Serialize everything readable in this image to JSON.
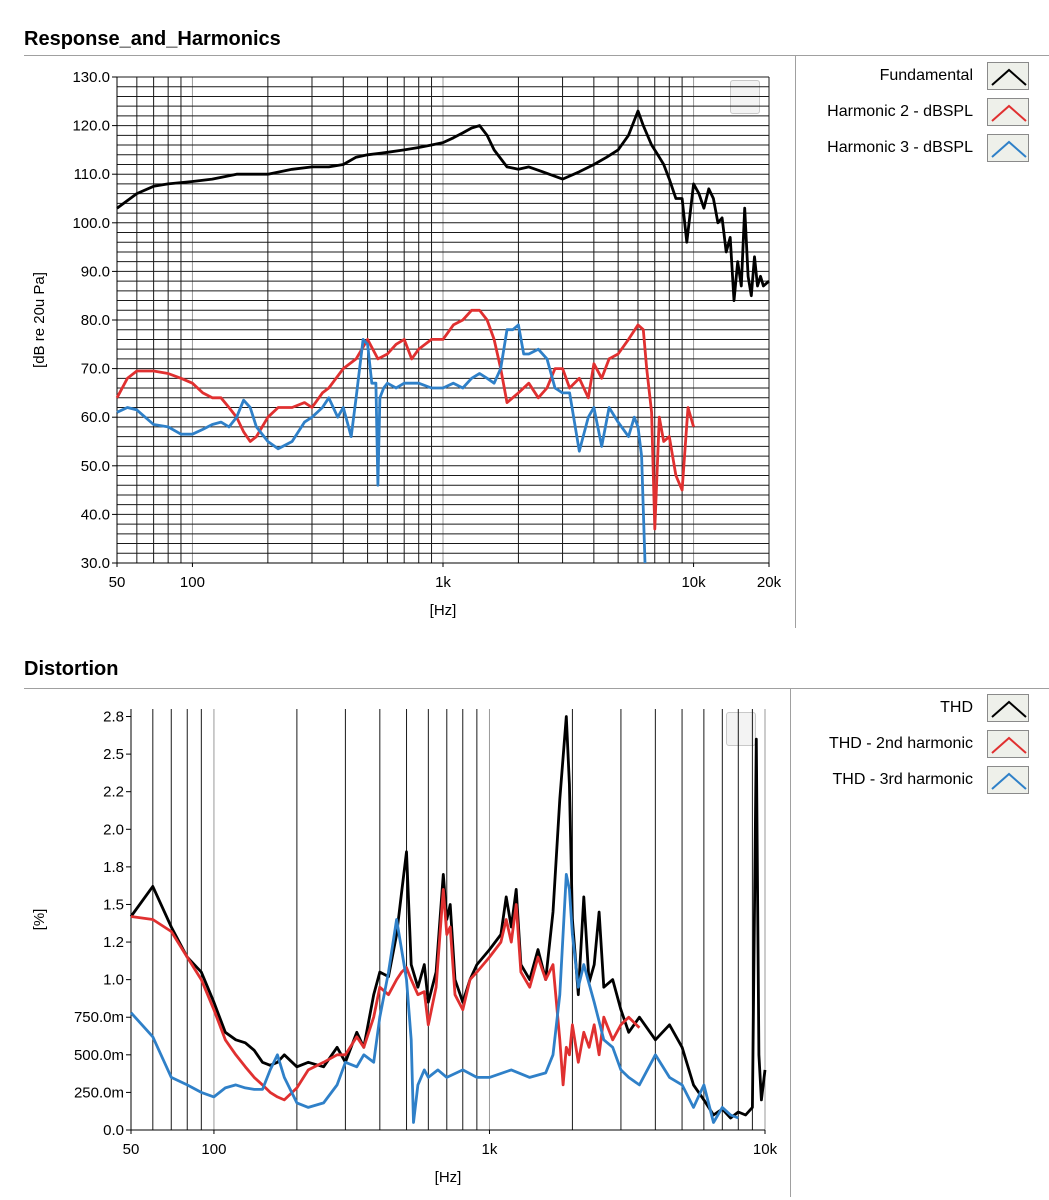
{
  "panels": [
    {
      "title": "Response_and_Harmonics",
      "legend": [
        {
          "label": "Fundamental",
          "color": "#000000"
        },
        {
          "label": "Harmonic 2 - dBSPL",
          "color": "#e03030"
        },
        {
          "label": "Harmonic 3 - dBSPL",
          "color": "#2f80c8"
        }
      ]
    },
    {
      "title": "Distortion",
      "legend": [
        {
          "label": "THD",
          "color": "#000000"
        },
        {
          "label": "THD - 2nd harmonic",
          "color": "#e03030"
        },
        {
          "label": "THD - 3rd harmonic",
          "color": "#2f80c8"
        }
      ]
    }
  ],
  "chart_data": [
    {
      "type": "line",
      "title": "Response_and_Harmonics",
      "xlabel": "[Hz]",
      "ylabel": "[dB re 20u Pa]",
      "xscale": "log",
      "xlim": [
        50,
        20000
      ],
      "ylim": [
        30,
        130
      ],
      "xticks": [
        50,
        100,
        1000,
        10000,
        20000
      ],
      "xtick_labels": [
        "50",
        "100",
        "1k",
        "10k",
        "20k"
      ],
      "yticks": [
        30,
        40,
        50,
        60,
        70,
        80,
        90,
        100,
        110,
        120,
        130
      ],
      "ytick_labels": [
        "30.0",
        "40.0",
        "50.0",
        "60.0",
        "70.0",
        "80.0",
        "90.0",
        "100.0",
        "110.0",
        "120.0",
        "130.0"
      ],
      "grid": true,
      "legend_position": "right",
      "series": [
        {
          "name": "Fundamental",
          "color": "#000000",
          "x": [
            50,
            60,
            70,
            80,
            100,
            120,
            150,
            200,
            250,
            300,
            350,
            400,
            450,
            500,
            600,
            700,
            800,
            900,
            1000,
            1100,
            1200,
            1300,
            1400,
            1500,
            1600,
            1800,
            2000,
            2200,
            2500,
            3000,
            3500,
            4000,
            4500,
            5000,
            5500,
            6000,
            6300,
            6800,
            7200,
            7600,
            8000,
            8500,
            9000,
            9400,
            10000,
            10500,
            11000,
            11500,
            12000,
            12500,
            13000,
            13500,
            14000,
            14500,
            15000,
            15500,
            16000,
            16500,
            17000,
            17500,
            18000,
            18500,
            19000,
            20000
          ],
          "y": [
            103,
            106,
            107.5,
            108,
            108.5,
            109,
            110,
            110,
            111,
            111.5,
            111.5,
            112,
            113.5,
            114,
            114.5,
            115,
            115.5,
            116,
            116.5,
            117.5,
            118.5,
            119.5,
            120,
            118,
            115,
            111.5,
            111,
            111.5,
            110.5,
            109,
            110.5,
            112,
            113.5,
            115,
            118,
            123,
            120,
            116,
            114,
            112,
            109,
            105,
            105,
            96,
            108,
            106,
            103,
            107,
            105,
            100,
            101,
            94,
            97,
            84,
            92,
            87,
            103,
            89,
            85,
            93,
            87,
            89,
            87,
            88
          ]
        },
        {
          "name": "Harmonic 2 - dBSPL",
          "color": "#e03030",
          "x": [
            50,
            55,
            60,
            70,
            80,
            90,
            100,
            110,
            120,
            130,
            140,
            150,
            160,
            170,
            180,
            200,
            220,
            250,
            280,
            300,
            330,
            350,
            400,
            450,
            500,
            550,
            600,
            650,
            700,
            750,
            800,
            900,
            1000,
            1100,
            1200,
            1300,
            1400,
            1500,
            1600,
            1700,
            1800,
            2000,
            2200,
            2400,
            2600,
            2800,
            3000,
            3200,
            3500,
            3800,
            4000,
            4300,
            4600,
            5000,
            5500,
            6000,
            6300,
            6500,
            6800,
            7000,
            7300,
            7600,
            8000,
            8500,
            9000,
            9500,
            10000
          ],
          "y": [
            64,
            68,
            69.5,
            69.5,
            69,
            68,
            67,
            65,
            64,
            64,
            62,
            60,
            57,
            55,
            56,
            60,
            62,
            62,
            63,
            62,
            65,
            66,
            70,
            72,
            76,
            72,
            73,
            75,
            76,
            72,
            74,
            76,
            76,
            79,
            80,
            82,
            82,
            80,
            76,
            70,
            63,
            65,
            67,
            64,
            66,
            70,
            70,
            66,
            68,
            64,
            71,
            68,
            72,
            73,
            76,
            79,
            78,
            70,
            61,
            37,
            60,
            55,
            56,
            48,
            45,
            62,
            58
          ]
        },
        {
          "name": "Harmonic 3 - dBSPL",
          "color": "#2f80c8",
          "x": [
            50,
            55,
            60,
            70,
            80,
            90,
            100,
            110,
            120,
            130,
            140,
            150,
            160,
            170,
            180,
            200,
            220,
            250,
            280,
            300,
            330,
            350,
            380,
            400,
            430,
            450,
            480,
            500,
            520,
            540,
            550,
            560,
            580,
            600,
            650,
            700,
            800,
            900,
            1000,
            1100,
            1200,
            1300,
            1400,
            1500,
            1600,
            1700,
            1800,
            1900,
            2000,
            2100,
            2200,
            2400,
            2600,
            2800,
            3000,
            3200,
            3500,
            3800,
            4000,
            4300,
            4600,
            5000,
            5500,
            5800,
            6000,
            6200,
            6400
          ],
          "y": [
            61,
            62,
            61.5,
            58.5,
            58,
            56.5,
            56.5,
            57.5,
            58.5,
            59,
            58,
            60,
            63.5,
            62,
            58,
            55,
            53.5,
            55,
            59,
            60,
            62,
            64,
            60,
            62,
            56,
            64,
            76,
            75,
            67,
            67,
            46,
            64,
            66,
            67,
            66,
            67,
            67,
            66,
            66,
            67,
            66,
            68,
            69,
            68,
            67,
            70,
            78,
            78,
            79,
            73,
            73,
            74,
            72,
            66,
            65,
            65,
            53,
            60,
            62,
            54,
            62,
            59,
            56,
            60,
            58,
            52,
            30
          ]
        }
      ]
    },
    {
      "type": "line",
      "title": "Distortion",
      "xlabel": "[Hz]",
      "ylabel": "[%]",
      "xscale": "log",
      "xlim": [
        50,
        10000
      ],
      "ylim": [
        0,
        2.8
      ],
      "xticks": [
        50,
        100,
        1000,
        10000
      ],
      "xtick_labels": [
        "50",
        "100",
        "1k",
        "10k"
      ],
      "yticks": [
        0,
        0.25,
        0.5,
        0.75,
        1.0,
        1.25,
        1.5,
        1.75,
        2.0,
        2.25,
        2.5,
        2.75
      ],
      "ytick_labels": [
        "0.0",
        "250.0m",
        "500.0m",
        "750.0m",
        "1.0",
        "1.2",
        "1.5",
        "1.8",
        "2.0",
        "2.2",
        "2.5",
        "2.8"
      ],
      "grid": true,
      "legend_position": "right",
      "series": [
        {
          "name": "THD",
          "color": "#000000",
          "x": [
            50,
            60,
            70,
            80,
            90,
            100,
            110,
            120,
            130,
            140,
            150,
            160,
            170,
            180,
            200,
            220,
            250,
            280,
            300,
            330,
            350,
            380,
            400,
            430,
            460,
            480,
            500,
            520,
            550,
            580,
            600,
            640,
            680,
            700,
            720,
            750,
            800,
            850,
            900,
            1000,
            1100,
            1150,
            1200,
            1250,
            1300,
            1400,
            1500,
            1600,
            1700,
            1800,
            1900,
            1950,
            2000,
            2100,
            2200,
            2300,
            2400,
            2500,
            2600,
            2800,
            3000,
            3200,
            3500,
            4000,
            4500,
            5000,
            5500,
            6000,
            6500,
            7000,
            7500,
            8000,
            8500,
            9000,
            9300,
            9500,
            9700,
            10000
          ],
          "y": [
            1.42,
            1.62,
            1.35,
            1.15,
            1.05,
            0.85,
            0.65,
            0.6,
            0.58,
            0.53,
            0.45,
            0.43,
            0.45,
            0.5,
            0.42,
            0.45,
            0.42,
            0.55,
            0.45,
            0.65,
            0.55,
            0.9,
            1.05,
            1.02,
            1.3,
            1.58,
            1.85,
            1.1,
            0.95,
            1.1,
            0.85,
            1.05,
            1.7,
            1.4,
            1.5,
            1.0,
            0.85,
            1.0,
            1.1,
            1.2,
            1.3,
            1.55,
            1.35,
            1.6,
            1.1,
            1.0,
            1.2,
            1.0,
            1.45,
            2.2,
            2.75,
            2.3,
            1.4,
            0.9,
            1.55,
            0.98,
            1.1,
            1.45,
            0.95,
            1.0,
            0.8,
            0.65,
            0.75,
            0.6,
            0.7,
            0.55,
            0.3,
            0.2,
            0.1,
            0.14,
            0.08,
            0.12,
            0.1,
            0.15,
            2.6,
            0.5,
            0.2,
            0.4
          ]
        },
        {
          "name": "THD - 2nd harmonic",
          "color": "#e03030",
          "x": [
            50,
            60,
            70,
            80,
            90,
            100,
            110,
            120,
            130,
            140,
            150,
            160,
            170,
            180,
            200,
            220,
            250,
            280,
            300,
            330,
            350,
            380,
            400,
            430,
            460,
            480,
            500,
            520,
            550,
            580,
            600,
            640,
            680,
            700,
            720,
            750,
            800,
            850,
            900,
            1000,
            1100,
            1150,
            1200,
            1250,
            1300,
            1400,
            1500,
            1600,
            1700,
            1800,
            1850,
            1900,
            1950,
            2000,
            2100,
            2200,
            2300,
            2400,
            2500,
            2600,
            2800,
            3000,
            3200,
            3500
          ],
          "y": [
            1.42,
            1.4,
            1.32,
            1.15,
            1.0,
            0.8,
            0.6,
            0.5,
            0.42,
            0.35,
            0.3,
            0.25,
            0.22,
            0.2,
            0.28,
            0.4,
            0.45,
            0.5,
            0.5,
            0.62,
            0.55,
            0.75,
            0.95,
            0.9,
            1.0,
            1.05,
            1.08,
            1.0,
            0.9,
            0.92,
            0.7,
            0.95,
            1.6,
            1.3,
            1.35,
            0.9,
            0.8,
            1.0,
            1.05,
            1.15,
            1.25,
            1.4,
            1.25,
            1.5,
            1.05,
            0.95,
            1.15,
            1.0,
            1.1,
            0.6,
            0.3,
            0.55,
            0.5,
            0.7,
            0.45,
            0.65,
            0.55,
            0.7,
            0.5,
            0.75,
            0.6,
            0.7,
            0.75,
            0.68
          ]
        },
        {
          "name": "THD - 3rd harmonic",
          "color": "#2f80c8",
          "x": [
            50,
            60,
            70,
            80,
            90,
            100,
            110,
            120,
            130,
            140,
            150,
            160,
            170,
            180,
            200,
            220,
            250,
            280,
            300,
            330,
            350,
            380,
            400,
            430,
            460,
            480,
            500,
            520,
            530,
            550,
            580,
            600,
            650,
            700,
            800,
            900,
            1000,
            1200,
            1400,
            1600,
            1700,
            1800,
            1900,
            1950,
            2000,
            2100,
            2200,
            2400,
            2600,
            2800,
            3000,
            3200,
            3500,
            4000,
            4500,
            5000,
            5500,
            6000,
            6500,
            7000,
            7500,
            8000
          ],
          "y": [
            0.78,
            0.62,
            0.35,
            0.3,
            0.25,
            0.22,
            0.28,
            0.3,
            0.28,
            0.27,
            0.27,
            0.4,
            0.5,
            0.35,
            0.18,
            0.15,
            0.18,
            0.3,
            0.45,
            0.42,
            0.5,
            0.45,
            0.75,
            1.05,
            1.4,
            1.2,
            1.0,
            0.6,
            0.05,
            0.3,
            0.4,
            0.35,
            0.4,
            0.35,
            0.4,
            0.35,
            0.35,
            0.4,
            0.35,
            0.38,
            0.5,
            0.9,
            1.7,
            1.6,
            1.3,
            0.95,
            1.1,
            0.85,
            0.6,
            0.55,
            0.4,
            0.35,
            0.3,
            0.5,
            0.35,
            0.3,
            0.15,
            0.3,
            0.05,
            0.15,
            0.1,
            0.08
          ]
        }
      ]
    }
  ]
}
